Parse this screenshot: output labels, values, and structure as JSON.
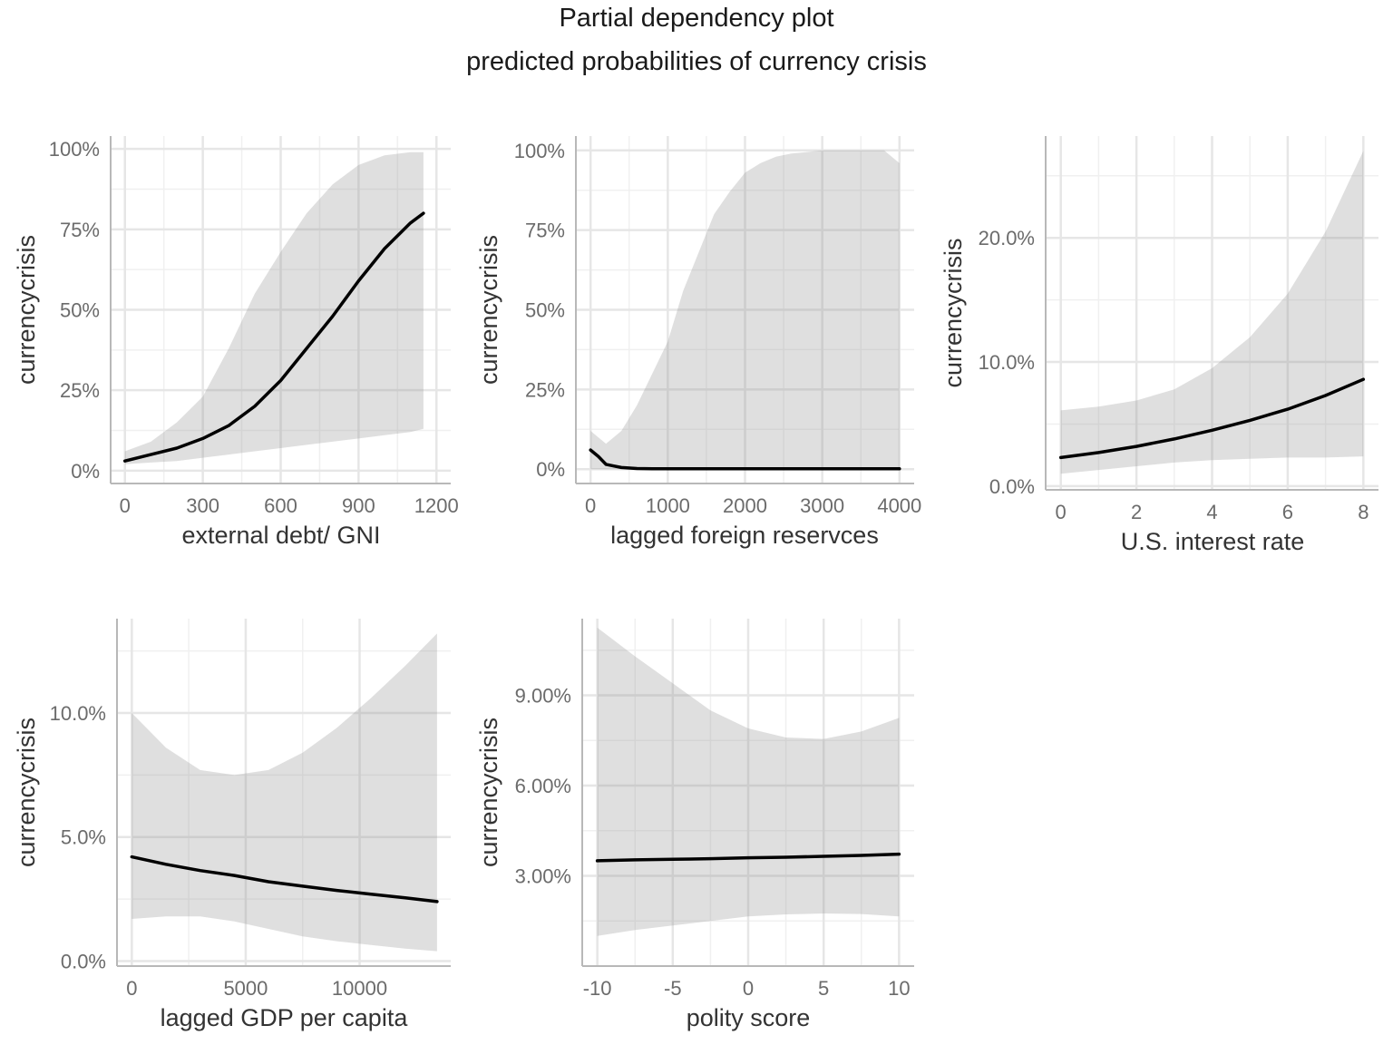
{
  "title": "Partial dependency plot",
  "subtitle": "predicted probabilities of currency crisis",
  "colors": {
    "band": "#e0e0e0",
    "line": "#000000",
    "grid": "#e6e6e6",
    "axis": "#b8b8b8",
    "text": "#6b6b6b"
  },
  "chart_data": [
    {
      "type": "line",
      "xlabel": "external debt/ GNI",
      "ylabel": "currencycrisis",
      "xlim": [
        -55,
        1255
      ],
      "ylim": [
        -0.04,
        1.04
      ],
      "x_ticks": [
        0,
        300,
        600,
        900,
        1200
      ],
      "x_tick_labels": [
        "0",
        "300",
        "600",
        "900",
        "1200"
      ],
      "y_ticks": [
        0,
        0.25,
        0.5,
        0.75,
        1.0
      ],
      "y_tick_labels": [
        "0%",
        "25%",
        "50%",
        "75%",
        "100%"
      ],
      "grid": true,
      "series": [
        {
          "x": [
            0,
            100,
            200,
            300,
            400,
            500,
            600,
            700,
            800,
            900,
            1000,
            1100,
            1150
          ],
          "y": [
            0.03,
            0.05,
            0.07,
            0.1,
            0.14,
            0.2,
            0.28,
            0.38,
            0.48,
            0.59,
            0.69,
            0.77,
            0.8
          ],
          "lower": [
            0.02,
            0.025,
            0.03,
            0.04,
            0.05,
            0.06,
            0.07,
            0.08,
            0.09,
            0.1,
            0.11,
            0.12,
            0.13
          ],
          "upper": [
            0.06,
            0.09,
            0.15,
            0.23,
            0.38,
            0.55,
            0.68,
            0.8,
            0.89,
            0.95,
            0.98,
            0.99,
            0.99
          ]
        }
      ]
    },
    {
      "type": "line",
      "xlabel": "lagged foreign reservces",
      "ylabel": "currencycrisis",
      "xlim": [
        -190,
        4190
      ],
      "ylim": [
        -0.045,
        1.045
      ],
      "x_ticks": [
        0,
        1000,
        2000,
        3000,
        4000
      ],
      "x_tick_labels": [
        "0",
        "1000",
        "2000",
        "3000",
        "4000"
      ],
      "y_ticks": [
        0,
        0.25,
        0.5,
        0.75,
        1.0
      ],
      "y_tick_labels": [
        "0%",
        "25%",
        "50%",
        "75%",
        "100%"
      ],
      "grid": true,
      "series": [
        {
          "x": [
            0,
            100,
            200,
            300,
            400,
            600,
            800,
            1000,
            1200,
            1400,
            1600,
            1800,
            2000,
            2200,
            2400,
            2600,
            2800,
            3000,
            3200,
            3400,
            3600,
            3800,
            4000
          ],
          "y": [
            0.06,
            0.04,
            0.015,
            0.01,
            0.005,
            0.002,
            0.001,
            0.001,
            0.001,
            0.001,
            0.001,
            0.001,
            0.001,
            0.001,
            0.001,
            0.001,
            0.001,
            0.001,
            0.001,
            0.001,
            0.001,
            0.001,
            0.001
          ],
          "lower": [
            0.0,
            0.0,
            0.0,
            0.0,
            0.0,
            0.0,
            0.0,
            0.0,
            0.0,
            0.0,
            0.0,
            0.0,
            0.0,
            0.0,
            0.0,
            0.0,
            0.0,
            0.0,
            0.0,
            0.0,
            0.0,
            0.0,
            0.0
          ],
          "upper": [
            0.12,
            0.1,
            0.08,
            0.1,
            0.12,
            0.2,
            0.3,
            0.4,
            0.56,
            0.68,
            0.8,
            0.87,
            0.93,
            0.96,
            0.98,
            0.99,
            0.995,
            1.0,
            1.0,
            1.0,
            1.0,
            1.0,
            0.96
          ]
        }
      ]
    },
    {
      "type": "line",
      "xlabel": "U.S. interest rate",
      "ylabel": "currencycrisis",
      "xlim": [
        -0.4,
        8.4
      ],
      "ylim": [
        -0.003,
        0.282
      ],
      "x_ticks": [
        0,
        2,
        4,
        6,
        8
      ],
      "x_tick_labels": [
        "0",
        "2",
        "4",
        "6",
        "8"
      ],
      "y_ticks": [
        0,
        0.1,
        0.2
      ],
      "y_tick_labels": [
        "0.0%",
        "10.0%",
        "20.0%"
      ],
      "grid": true,
      "series": [
        {
          "x": [
            0,
            1,
            2,
            3,
            4,
            5,
            6,
            7,
            8
          ],
          "y": [
            0.023,
            0.027,
            0.032,
            0.038,
            0.045,
            0.053,
            0.062,
            0.073,
            0.086
          ],
          "lower": [
            0.01,
            0.013,
            0.016,
            0.019,
            0.021,
            0.022,
            0.023,
            0.023,
            0.024
          ],
          "upper": [
            0.061,
            0.064,
            0.069,
            0.078,
            0.095,
            0.12,
            0.155,
            0.205,
            0.27
          ]
        }
      ]
    },
    {
      "type": "line",
      "xlabel": "lagged GDP per capita",
      "ylabel": "currencycrisis",
      "xlim": [
        -650,
        14000
      ],
      "ylim": [
        -0.002,
        0.138
      ],
      "x_ticks": [
        0,
        5000,
        10000
      ],
      "x_tick_labels": [
        "0",
        "5000",
        "10000"
      ],
      "y_ticks": [
        0,
        0.05,
        0.1
      ],
      "y_tick_labels": [
        "0.0%",
        "5.0%",
        "10.0%"
      ],
      "grid": true,
      "series": [
        {
          "x": [
            0,
            1500,
            3000,
            4500,
            6000,
            7500,
            9000,
            10500,
            12000,
            13400
          ],
          "y": [
            0.042,
            0.039,
            0.0365,
            0.0345,
            0.032,
            0.0302,
            0.0285,
            0.027,
            0.0255,
            0.024
          ],
          "lower": [
            0.017,
            0.018,
            0.018,
            0.016,
            0.013,
            0.01,
            0.008,
            0.0065,
            0.005,
            0.004
          ],
          "upper": [
            0.1,
            0.086,
            0.077,
            0.075,
            0.077,
            0.084,
            0.094,
            0.106,
            0.119,
            0.132
          ]
        }
      ]
    },
    {
      "type": "line",
      "xlabel": "polity score",
      "ylabel": "currencycrisis",
      "xlim": [
        -11,
        11
      ],
      "ylim": [
        0.0,
        0.1155
      ],
      "x_ticks": [
        -10,
        -5,
        0,
        5,
        10
      ],
      "x_tick_labels": [
        "-10",
        "-5",
        "0",
        "5",
        "10"
      ],
      "y_ticks": [
        0.03,
        0.06,
        0.09
      ],
      "y_tick_labels": [
        "3.00%",
        "6.00%",
        "9.00%"
      ],
      "grid": true,
      "series": [
        {
          "x": [
            -10,
            -7.5,
            -5,
            -2.5,
            0,
            2.5,
            5,
            7.5,
            10
          ],
          "y": [
            0.035,
            0.0353,
            0.0355,
            0.0357,
            0.036,
            0.0362,
            0.0365,
            0.0368,
            0.0372
          ],
          "lower": [
            0.01,
            0.012,
            0.0135,
            0.015,
            0.0165,
            0.0172,
            0.0175,
            0.0173,
            0.0165
          ],
          "upper": [
            0.1125,
            0.103,
            0.094,
            0.085,
            0.079,
            0.076,
            0.0755,
            0.078,
            0.0825
          ]
        }
      ]
    }
  ]
}
